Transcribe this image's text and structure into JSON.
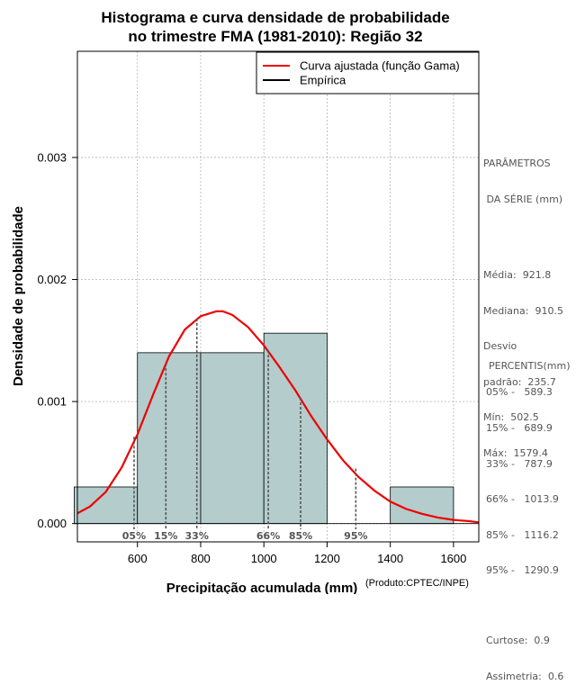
{
  "chart_data": {
    "type": "histogram",
    "title_lines": [
      "Histograma e curva densidade de probabilidade",
      "no trimestre FMA (1981-2010): Região 32"
    ],
    "xlabel": "Precipitação acumulada (mm)",
    "ylabel": "Densidade de probabilidade",
    "credit": "(Produto:CPTEC/INPE)",
    "xlim": [
      410,
      1680
    ],
    "ylim": [
      -0.00015,
      0.00387
    ],
    "x_ticks": [
      600,
      800,
      1000,
      1200,
      1400,
      1600
    ],
    "x_tick_labels": [
      "600",
      "800",
      "1000",
      "1200",
      "1400",
      "1600"
    ],
    "y_ticks": [
      0,
      0.001,
      0.002,
      0.003
    ],
    "y_tick_labels": [
      "0.000",
      "0.001",
      "0.002",
      "0.003"
    ],
    "grid": true,
    "legend_position": "top-right",
    "legend": [
      {
        "label": "Curva ajustada (função Gama)",
        "color": "#ee0000"
      },
      {
        "label": "Empírica",
        "color": "#000000"
      }
    ],
    "bins": [
      {
        "x0": 400,
        "x1": 600,
        "density": 0.0003
      },
      {
        "x0": 600,
        "x1": 800,
        "density": 0.0014
      },
      {
        "x0": 800,
        "x1": 1000,
        "density": 0.0014
      },
      {
        "x0": 1000,
        "x1": 1200,
        "density": 0.00156
      },
      {
        "x0": 1200,
        "x1": 1400,
        "density": 0.0
      },
      {
        "x0": 1400,
        "x1": 1600,
        "density": 0.0003
      }
    ],
    "fitted_curve": {
      "name": "Curva ajustada (função Gama)",
      "x": [
        400,
        450,
        500,
        550,
        600,
        650,
        700,
        750,
        800,
        850,
        870,
        900,
        950,
        1000,
        1050,
        1100,
        1150,
        1200,
        1250,
        1300,
        1350,
        1400,
        1450,
        1500,
        1550,
        1600,
        1650,
        1680
      ],
      "y": [
        7e-05,
        0.00014,
        0.00026,
        0.00046,
        0.00073,
        0.00106,
        0.00137,
        0.00159,
        0.0017,
        0.00174,
        0.00174,
        0.00171,
        0.00161,
        0.00146,
        0.00128,
        0.00109,
        0.00088,
        0.00069,
        0.00052,
        0.00038,
        0.00027,
        0.00018,
        0.00012,
        8e-05,
        5e-05,
        3e-05,
        2e-05,
        1e-05
      ]
    },
    "percentile_lines": [
      {
        "label": "05%",
        "x": 589.3,
        "y": 0.00071
      },
      {
        "label": "15%",
        "x": 689.9,
        "y": 0.00131
      },
      {
        "label": "33%",
        "x": 787.9,
        "y": 0.00168
      },
      {
        "label": "66%",
        "x": 1013.9,
        "y": 0.00142
      },
      {
        "label": "85%",
        "x": 1116.2,
        "y": 0.00103
      },
      {
        "label": "95%",
        "x": 1290.9,
        "y": 0.00045
      }
    ],
    "colors": {
      "bar_fill": "#b4cccc",
      "curve": "#ee0000",
      "grid": "#b3b3b3",
      "percentile": "#555555"
    }
  },
  "stats_panel": {
    "heading_line1": "PARÂMETROS",
    "heading_line2": " DA SÉRIE (mm)",
    "lines": [
      "Média:  921.8",
      "Mediana:  910.5",
      "Desvio",
      "padrão:  235.7",
      "Mín:  502.5",
      "Máx:  1579.4"
    ]
  },
  "percentile_panel": {
    "heading": "PERCENTIS(mm)",
    "lines": [
      "05% -   589.3",
      "15% -   689.9",
      "33% -   787.9",
      "66% -   1013.9",
      "85% -   1116.2",
      "95% -   1290.9"
    ],
    "curtose": "Curtose:  0.9",
    "assimetria": "Assimetria:  0.6"
  }
}
